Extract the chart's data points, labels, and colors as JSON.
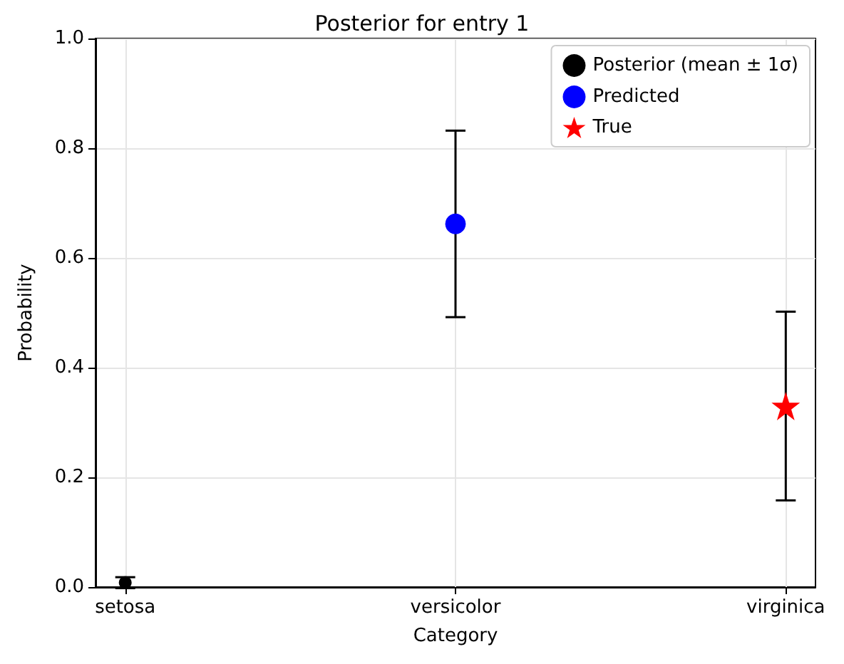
{
  "chart_data": {
    "type": "scatter",
    "title": "Posterior for entry 1",
    "xlabel": "Category",
    "ylabel": "Probability",
    "categories": [
      "setosa",
      "versicolor",
      "virginica"
    ],
    "series": [
      {
        "name": "Posterior (mean ± 1σ)",
        "color": "#000000",
        "marker": "circle",
        "values": [
          0.008,
          null,
          null
        ],
        "errors": [
          0.01,
          null,
          null
        ]
      },
      {
        "name": "Predicted",
        "color": "#0000ff",
        "marker": "circle",
        "values": [
          null,
          0.662,
          null
        ],
        "errors": [
          null,
          0.17,
          null
        ]
      },
      {
        "name": "True",
        "color": "#ff0000",
        "marker": "star",
        "values": [
          null,
          null,
          0.33
        ],
        "errors": [
          null,
          null,
          0.172
        ]
      }
    ],
    "ylim": [
      0,
      1
    ],
    "yticks": [
      {
        "value": 0,
        "label": "0.0"
      },
      0.2,
      0.4,
      0.6,
      0.8,
      {
        "value": 1,
        "label": "1.0"
      }
    ],
    "grid": true,
    "legend": "top right"
  }
}
